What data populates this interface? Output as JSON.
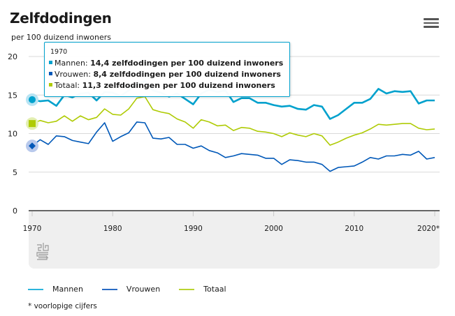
{
  "header": {
    "title": "Zelfdodingen",
    "subtitle": "per 100 duizend inwoners",
    "menu_icon": "hamburger-menu-icon"
  },
  "tooltip": {
    "year": "1970",
    "rows": [
      {
        "label": "Mannen:",
        "value": "14,4 zelfdodingen per 100 duizend inwoners",
        "color": "#00a1cd"
      },
      {
        "label": "Vrouwen:",
        "value": "8,4 zelfdodingen per 100 duizend inwoners",
        "color": "#0058b8"
      },
      {
        "label": "Totaal:",
        "value": "11,3 zelfdodingen per 100 duizend inwoners",
        "color": "#afcb05"
      }
    ]
  },
  "footnote": "* voorlopige cijfers",
  "logo": "cbs-logo-icon",
  "chart_data": {
    "type": "line",
    "title": "Zelfdodingen",
    "ylabel": "per 100 duizend inwoners",
    "xlabel": "",
    "ylim": [
      0,
      20
    ],
    "yticks": [
      0,
      5,
      10,
      15,
      20
    ],
    "xticks": [
      1970,
      1980,
      1990,
      2000,
      2010,
      2020
    ],
    "xtick_labels": [
      "1970",
      "1980",
      "1990",
      "2000",
      "2010",
      "2020*"
    ],
    "grid": true,
    "legend": "bottom-left",
    "highlighted_x": 1970,
    "x": [
      1970,
      1971,
      1972,
      1973,
      1974,
      1975,
      1976,
      1977,
      1978,
      1979,
      1980,
      1981,
      1982,
      1983,
      1984,
      1985,
      1986,
      1987,
      1988,
      1989,
      1990,
      1991,
      1992,
      1993,
      1994,
      1995,
      1996,
      1997,
      1998,
      1999,
      2000,
      2001,
      2002,
      2003,
      2004,
      2005,
      2006,
      2007,
      2008,
      2009,
      2010,
      2011,
      2012,
      2013,
      2014,
      2015,
      2016,
      2017,
      2018,
      2019,
      2020
    ],
    "series": [
      {
        "name": "Mannen",
        "color": "#00a1cd",
        "values": [
          14.4,
          14.2,
          14.3,
          13.6,
          15.0,
          14.7,
          15.2,
          15.3,
          14.3,
          15.4,
          15.3,
          14.9,
          15.6,
          16.4,
          16.8,
          15.6,
          15.3,
          14.8,
          15.2,
          14.5,
          13.8,
          15.2,
          15.7,
          15.4,
          15.6,
          14.1,
          14.6,
          14.6,
          14.0,
          14.0,
          13.7,
          13.5,
          13.6,
          13.2,
          13.1,
          13.7,
          13.5,
          11.9,
          12.4,
          13.2,
          14.0,
          14.0,
          14.5,
          15.8,
          15.2,
          15.5,
          15.4,
          15.5,
          13.9,
          14.3,
          14.3
        ]
      },
      {
        "name": "Vrouwen",
        "color": "#0058b8",
        "values": [
          8.4,
          9.2,
          8.6,
          9.7,
          9.6,
          9.1,
          8.9,
          8.7,
          10.2,
          11.4,
          9.0,
          9.6,
          10.1,
          11.5,
          11.4,
          9.4,
          9.3,
          9.5,
          8.6,
          8.6,
          8.1,
          8.4,
          7.8,
          7.5,
          6.9,
          7.1,
          7.4,
          7.3,
          7.2,
          6.8,
          6.8,
          6.0,
          6.6,
          6.5,
          6.3,
          6.3,
          6.0,
          5.1,
          5.6,
          5.7,
          5.8,
          6.3,
          6.9,
          6.7,
          7.1,
          7.1,
          7.3,
          7.2,
          7.7,
          6.7,
          6.9
        ]
      },
      {
        "name": "Totaal",
        "color": "#afcb05",
        "values": [
          11.3,
          11.7,
          11.4,
          11.6,
          12.3,
          11.6,
          12.3,
          11.8,
          12.1,
          13.2,
          12.5,
          12.4,
          13.2,
          14.6,
          14.8,
          13.1,
          12.8,
          12.6,
          11.9,
          11.5,
          10.7,
          11.8,
          11.5,
          11.0,
          11.1,
          10.4,
          10.8,
          10.7,
          10.3,
          10.2,
          10.0,
          9.6,
          10.1,
          9.8,
          9.6,
          10.0,
          9.7,
          8.5,
          8.9,
          9.4,
          9.8,
          10.1,
          10.6,
          11.2,
          11.1,
          11.2,
          11.3,
          11.3,
          10.7,
          10.5,
          10.6
        ]
      }
    ]
  }
}
